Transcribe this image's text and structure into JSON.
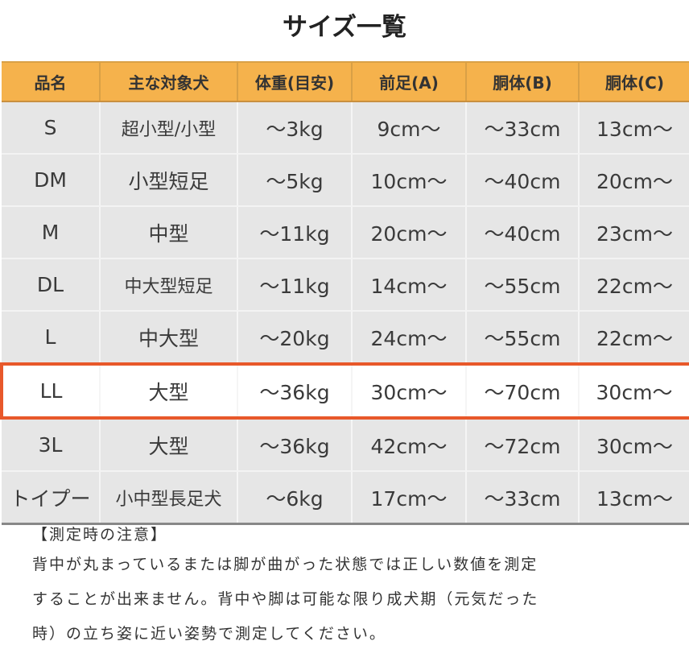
{
  "title": "サイズ一覧",
  "headers": [
    "品名",
    "主な対象犬",
    "体重(目安)",
    "前足(A)",
    "胴体(B)",
    "胴体(C)"
  ],
  "rows": [
    [
      "S",
      "超小型/小型",
      "～3kg",
      "9cm～",
      "～33cm",
      "13cm～"
    ],
    [
      "DM",
      "小型短足",
      "～5kg",
      "10cm～",
      "～40cm",
      "20cm～"
    ],
    [
      "M",
      "中型",
      "～11kg",
      "20cm～",
      "～40cm",
      "23cm～"
    ],
    [
      "DL",
      "中大型短足",
      "～11kg",
      "14cm～",
      "～55cm",
      "22cm～"
    ],
    [
      "L",
      "中大型",
      "～20kg",
      "24cm～",
      "～55cm",
      "22cm～"
    ],
    [
      "LL",
      "大型",
      "～36kg",
      "30cm～",
      "～70cm",
      "30cm～"
    ],
    [
      "3L",
      "大型",
      "～36kg",
      "42cm～",
      "～72cm",
      "30cm～"
    ],
    [
      "トイプー",
      "小中型長足犬",
      "～6kg",
      "17cm～",
      "～33cm",
      "13cm～"
    ]
  ],
  "highlighted_row": "LL",
  "colors": {
    "header": "#f5b24c",
    "highlight_border": "#e8582a",
    "row": "#e6e6e6"
  },
  "notes": {
    "heading": "【測定時の注意】",
    "lines": [
      "背中が丸まっているまたは脚が曲がった状態では正しい数値を測定",
      "することが出来ません。背中や脚は可能な限り成犬期（元気だった",
      "時）の立ち姿に近い姿勢で測定してください。"
    ]
  }
}
